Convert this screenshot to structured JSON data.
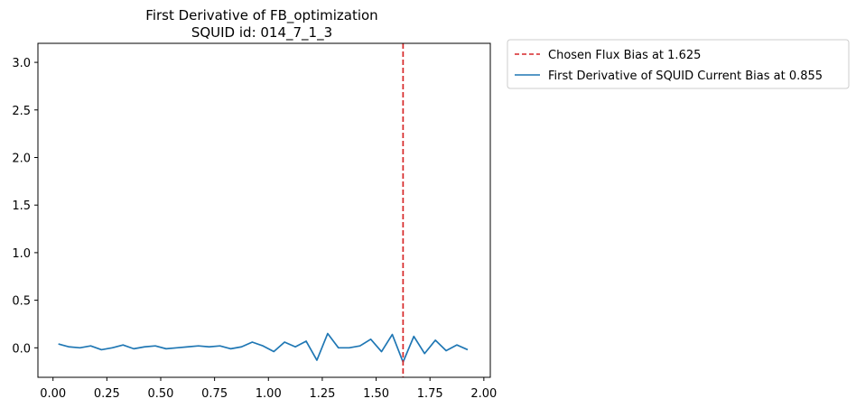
{
  "chart_data": {
    "type": "line",
    "title": "First Derivative of FB_optimization",
    "subtitle": "SQUID id: 014_7_1_3",
    "xlabel": "",
    "ylabel": "",
    "xlim": [
      -0.07,
      2.03
    ],
    "ylim": [
      -0.31,
      3.2
    ],
    "xticks": [
      0.0,
      0.25,
      0.5,
      0.75,
      1.0,
      1.25,
      1.5,
      1.75,
      2.0
    ],
    "xtick_labels": [
      "0.00",
      "0.25",
      "0.50",
      "0.75",
      "1.00",
      "1.25",
      "1.50",
      "1.75",
      "2.00"
    ],
    "yticks": [
      0.0,
      0.5,
      1.0,
      1.5,
      2.0,
      2.5,
      3.0
    ],
    "ytick_labels": [
      "0.0",
      "0.5",
      "1.0",
      "1.5",
      "2.0",
      "2.5",
      "3.0"
    ],
    "grid": false,
    "legend_placement": "outside top-right",
    "vline": {
      "name": "Chosen Flux Bias at 1.625",
      "x": 1.625,
      "color": "#d62728",
      "style": "dashed"
    },
    "series": [
      {
        "name": "First Derivative of SQUID Current Bias at 0.855",
        "color": "#1f77b4",
        "x": [
          0.025,
          0.075,
          0.125,
          0.175,
          0.225,
          0.275,
          0.325,
          0.375,
          0.425,
          0.475,
          0.525,
          0.575,
          0.625,
          0.675,
          0.725,
          0.775,
          0.825,
          0.875,
          0.925,
          0.975,
          1.025,
          1.075,
          1.125,
          1.175,
          1.225,
          1.275,
          1.325,
          1.375,
          1.425,
          1.475,
          1.525,
          1.575,
          1.625,
          1.675,
          1.725,
          1.775,
          1.825,
          1.875,
          1.925
        ],
        "y": [
          0.04,
          0.01,
          0.0,
          0.02,
          -0.02,
          0.0,
          0.03,
          -0.01,
          0.01,
          0.02,
          -0.01,
          0.0,
          0.01,
          0.02,
          0.01,
          0.02,
          -0.01,
          0.01,
          0.06,
          0.02,
          -0.04,
          0.06,
          0.01,
          0.07,
          -0.13,
          0.15,
          0.0,
          0.0,
          0.02,
          0.09,
          -0.04,
          0.14,
          -0.15,
          0.12,
          -0.06,
          0.08,
          -0.03,
          0.03,
          -0.02
        ]
      }
    ]
  }
}
